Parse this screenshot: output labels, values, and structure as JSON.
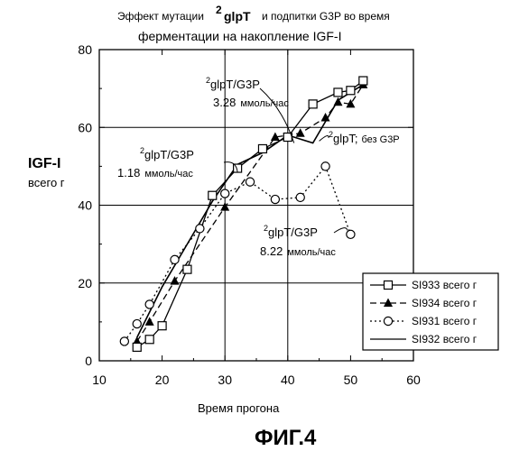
{
  "chart_data": {
    "type": "line",
    "title_part1": "Эффект мутации",
    "title_gene_sup": "2",
    "title_gene": "glpT",
    "title_part2": "и подпитки G3P во время",
    "title_line2": "ферментации на накопление IGF-I",
    "ylabel": "IGF-I",
    "ylabel_sub": "всего г",
    "xlabel": "Время прогона",
    "xlim": [
      10,
      60
    ],
    "ylim": [
      0,
      80
    ],
    "xticks": [
      "10",
      "20",
      "30",
      "40",
      "50",
      "60"
    ],
    "yticks": [
      "0",
      "20",
      "40",
      "60",
      "80"
    ],
    "series": [
      {
        "name": "SI933 всего г",
        "marker": "square",
        "line": "solid",
        "x": [
          16,
          18,
          20,
          24,
          28,
          32,
          36,
          40,
          44,
          48,
          50,
          52
        ],
        "y": [
          3.5,
          5.5,
          9,
          23.5,
          42.5,
          49.5,
          54.5,
          57.5,
          66,
          69,
          69.5,
          72
        ]
      },
      {
        "name": "SI934 всего г",
        "marker": "triangle",
        "line": "dashed",
        "x": [
          16,
          18,
          22,
          30,
          38,
          42,
          46,
          48,
          50,
          52
        ],
        "y": [
          5,
          10,
          20.5,
          39.5,
          57.5,
          58.5,
          62.5,
          66.5,
          66,
          71
        ]
      },
      {
        "name": "SI931 всего г",
        "marker": "circle",
        "line": "dotted",
        "x": [
          14,
          16,
          18,
          22,
          26,
          30,
          34,
          38,
          42,
          46,
          50
        ],
        "y": [
          5,
          9.5,
          14.5,
          26,
          34,
          43,
          46,
          41.5,
          42,
          50,
          32.5
        ]
      },
      {
        "name": "SI932 всего г",
        "marker": "none",
        "line": "solid",
        "x": [
          16,
          20,
          24,
          28,
          32,
          36,
          40,
          44,
          48,
          52
        ],
        "y": [
          6,
          19,
          30,
          41,
          50.5,
          53.5,
          58,
          56,
          67,
          71
        ]
      }
    ],
    "annotations": [
      {
        "sup": "2",
        "text": "glpT/G3P",
        "sub": "3.28",
        "unit": "ммоль/час",
        "target": [
          41,
          56
        ]
      },
      {
        "sup": "2",
        "text": "glpT/G3P",
        "sub": "1.18",
        "unit": "ммоль/час",
        "target": [
          32,
          48.5
        ]
      },
      {
        "sup": "2",
        "text": "glpT;",
        "sub": "",
        "unit": "без G3P",
        "target": [
          45,
          56.5
        ]
      },
      {
        "sup": "2",
        "text": "glpT/G3P",
        "sub": "8.22",
        "unit": "ммоль/час",
        "target": [
          49.5,
          33.5
        ]
      }
    ],
    "grid": "horizontal-and-vertical at 30 and 40",
    "legend_position": "bottom-right"
  },
  "figure_label": "ФИГ.4"
}
